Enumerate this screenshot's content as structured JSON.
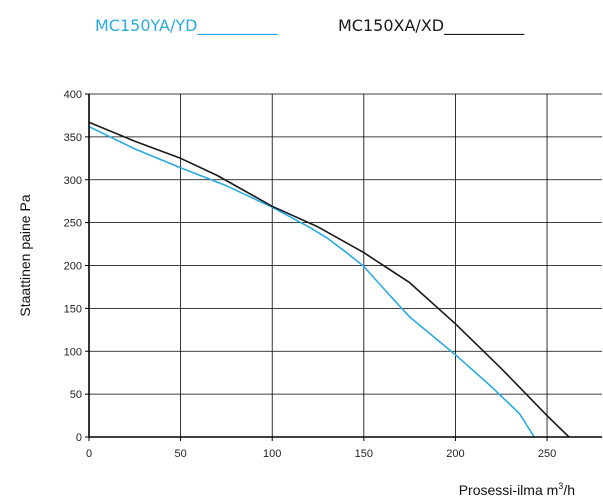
{
  "chart_data": {
    "type": "line",
    "xlabel": "Prosessi-ilma m",
    "xlabel_sup": "3",
    "xlabel_unit": "/h",
    "ylabel": "Staattinen paine  Pa",
    "xlim": [
      0,
      280
    ],
    "ylim": [
      0,
      400
    ],
    "xticks": [
      0,
      50,
      100,
      150,
      200,
      250
    ],
    "yticks": [
      0,
      50,
      100,
      150,
      200,
      250,
      300,
      350,
      400
    ],
    "xtick_labels": [
      "0",
      "50",
      "100",
      "150",
      "200",
      "250"
    ],
    "ytick_labels": [
      "0",
      "50",
      "100",
      "150",
      "200",
      "250",
      "300",
      "350",
      "400"
    ],
    "grid": true,
    "legend_position": "top",
    "series": [
      {
        "name": "MC150YA/YD__________",
        "color": "#29abe2",
        "points": [
          [
            0,
            362
          ],
          [
            25,
            336
          ],
          [
            50,
            314
          ],
          [
            75,
            293
          ],
          [
            100,
            268
          ],
          [
            120,
            245
          ],
          [
            130,
            232
          ],
          [
            140,
            216
          ],
          [
            150,
            199
          ],
          [
            160,
            175
          ],
          [
            175,
            140
          ],
          [
            200,
            96
          ],
          [
            220,
            58
          ],
          [
            235,
            27
          ],
          [
            243,
            0
          ]
        ]
      },
      {
        "name": "MC150XA/XD__________",
        "color": "#1a1a1a",
        "points": [
          [
            0,
            367
          ],
          [
            25,
            345
          ],
          [
            50,
            325
          ],
          [
            70,
            305
          ],
          [
            100,
            269
          ],
          [
            125,
            245
          ],
          [
            150,
            215
          ],
          [
            175,
            180
          ],
          [
            200,
            132
          ],
          [
            225,
            80
          ],
          [
            250,
            25
          ],
          [
            262,
            0
          ]
        ]
      }
    ]
  }
}
